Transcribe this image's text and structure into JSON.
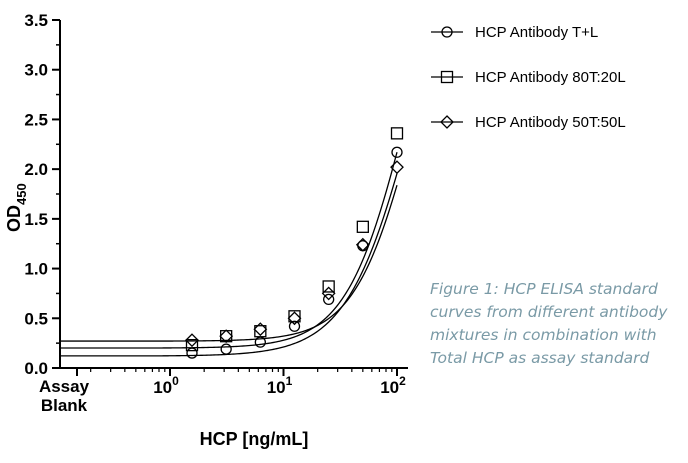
{
  "chart_data": {
    "type": "scatter",
    "title": "",
    "xlabel": "HCP [ng/mL]",
    "ylabel": "OD",
    "ylabel_subscript": "450",
    "x_scale": "log",
    "x_ticks": [
      {
        "value": 1,
        "label": "10",
        "exp": "0"
      },
      {
        "value": 10,
        "label": "10",
        "exp": "1"
      },
      {
        "value": 100,
        "label": "10",
        "exp": "2"
      }
    ],
    "x_blank_label": [
      "Assay",
      "Blank"
    ],
    "ylim": [
      0,
      3.5
    ],
    "y_ticks": [
      "0.0",
      "0.5",
      "1.0",
      "1.5",
      "2.0",
      "2.5",
      "3.0",
      "3.5"
    ],
    "grid": false,
    "legend_position": "right",
    "series": [
      {
        "name": "HCP Antibody T+L",
        "marker": "circle",
        "x": [
          1.5625,
          3.125,
          6.25,
          12.5,
          25,
          50,
          100
        ],
        "y": [
          0.15,
          0.19,
          0.26,
          0.42,
          0.69,
          1.23,
          2.17
        ],
        "fit": {
          "bottom": 0.12,
          "top": 5.0,
          "ec50": 140,
          "hill": 1.5
        }
      },
      {
        "name": "HCP Antibody 80T:20L",
        "marker": "square",
        "x": [
          1.5625,
          3.125,
          6.25,
          12.5,
          25,
          50,
          100
        ],
        "y": [
          0.23,
          0.32,
          0.37,
          0.52,
          0.82,
          1.42,
          2.36
        ],
        "fit": {
          "bottom": 0.2,
          "top": 5.0,
          "ec50": 125,
          "hill": 1.62
        }
      },
      {
        "name": "HCP Antibody 50T:50L",
        "marker": "diamond",
        "x": [
          1.5625,
          3.125,
          6.25,
          12.5,
          25,
          50,
          100
        ],
        "y": [
          0.28,
          0.32,
          0.39,
          0.5,
          0.75,
          1.24,
          2.02
        ],
        "fit": {
          "bottom": 0.27,
          "top": 4.6,
          "ec50": 140,
          "hill": 1.68
        }
      }
    ]
  },
  "caption": {
    "lines": [
      "Figure 1: HCP ELISA standard",
      "curves from different antibody",
      "mixtures in combination with",
      "Total HCP as assay standard"
    ],
    "color": "#7a9aa6"
  }
}
